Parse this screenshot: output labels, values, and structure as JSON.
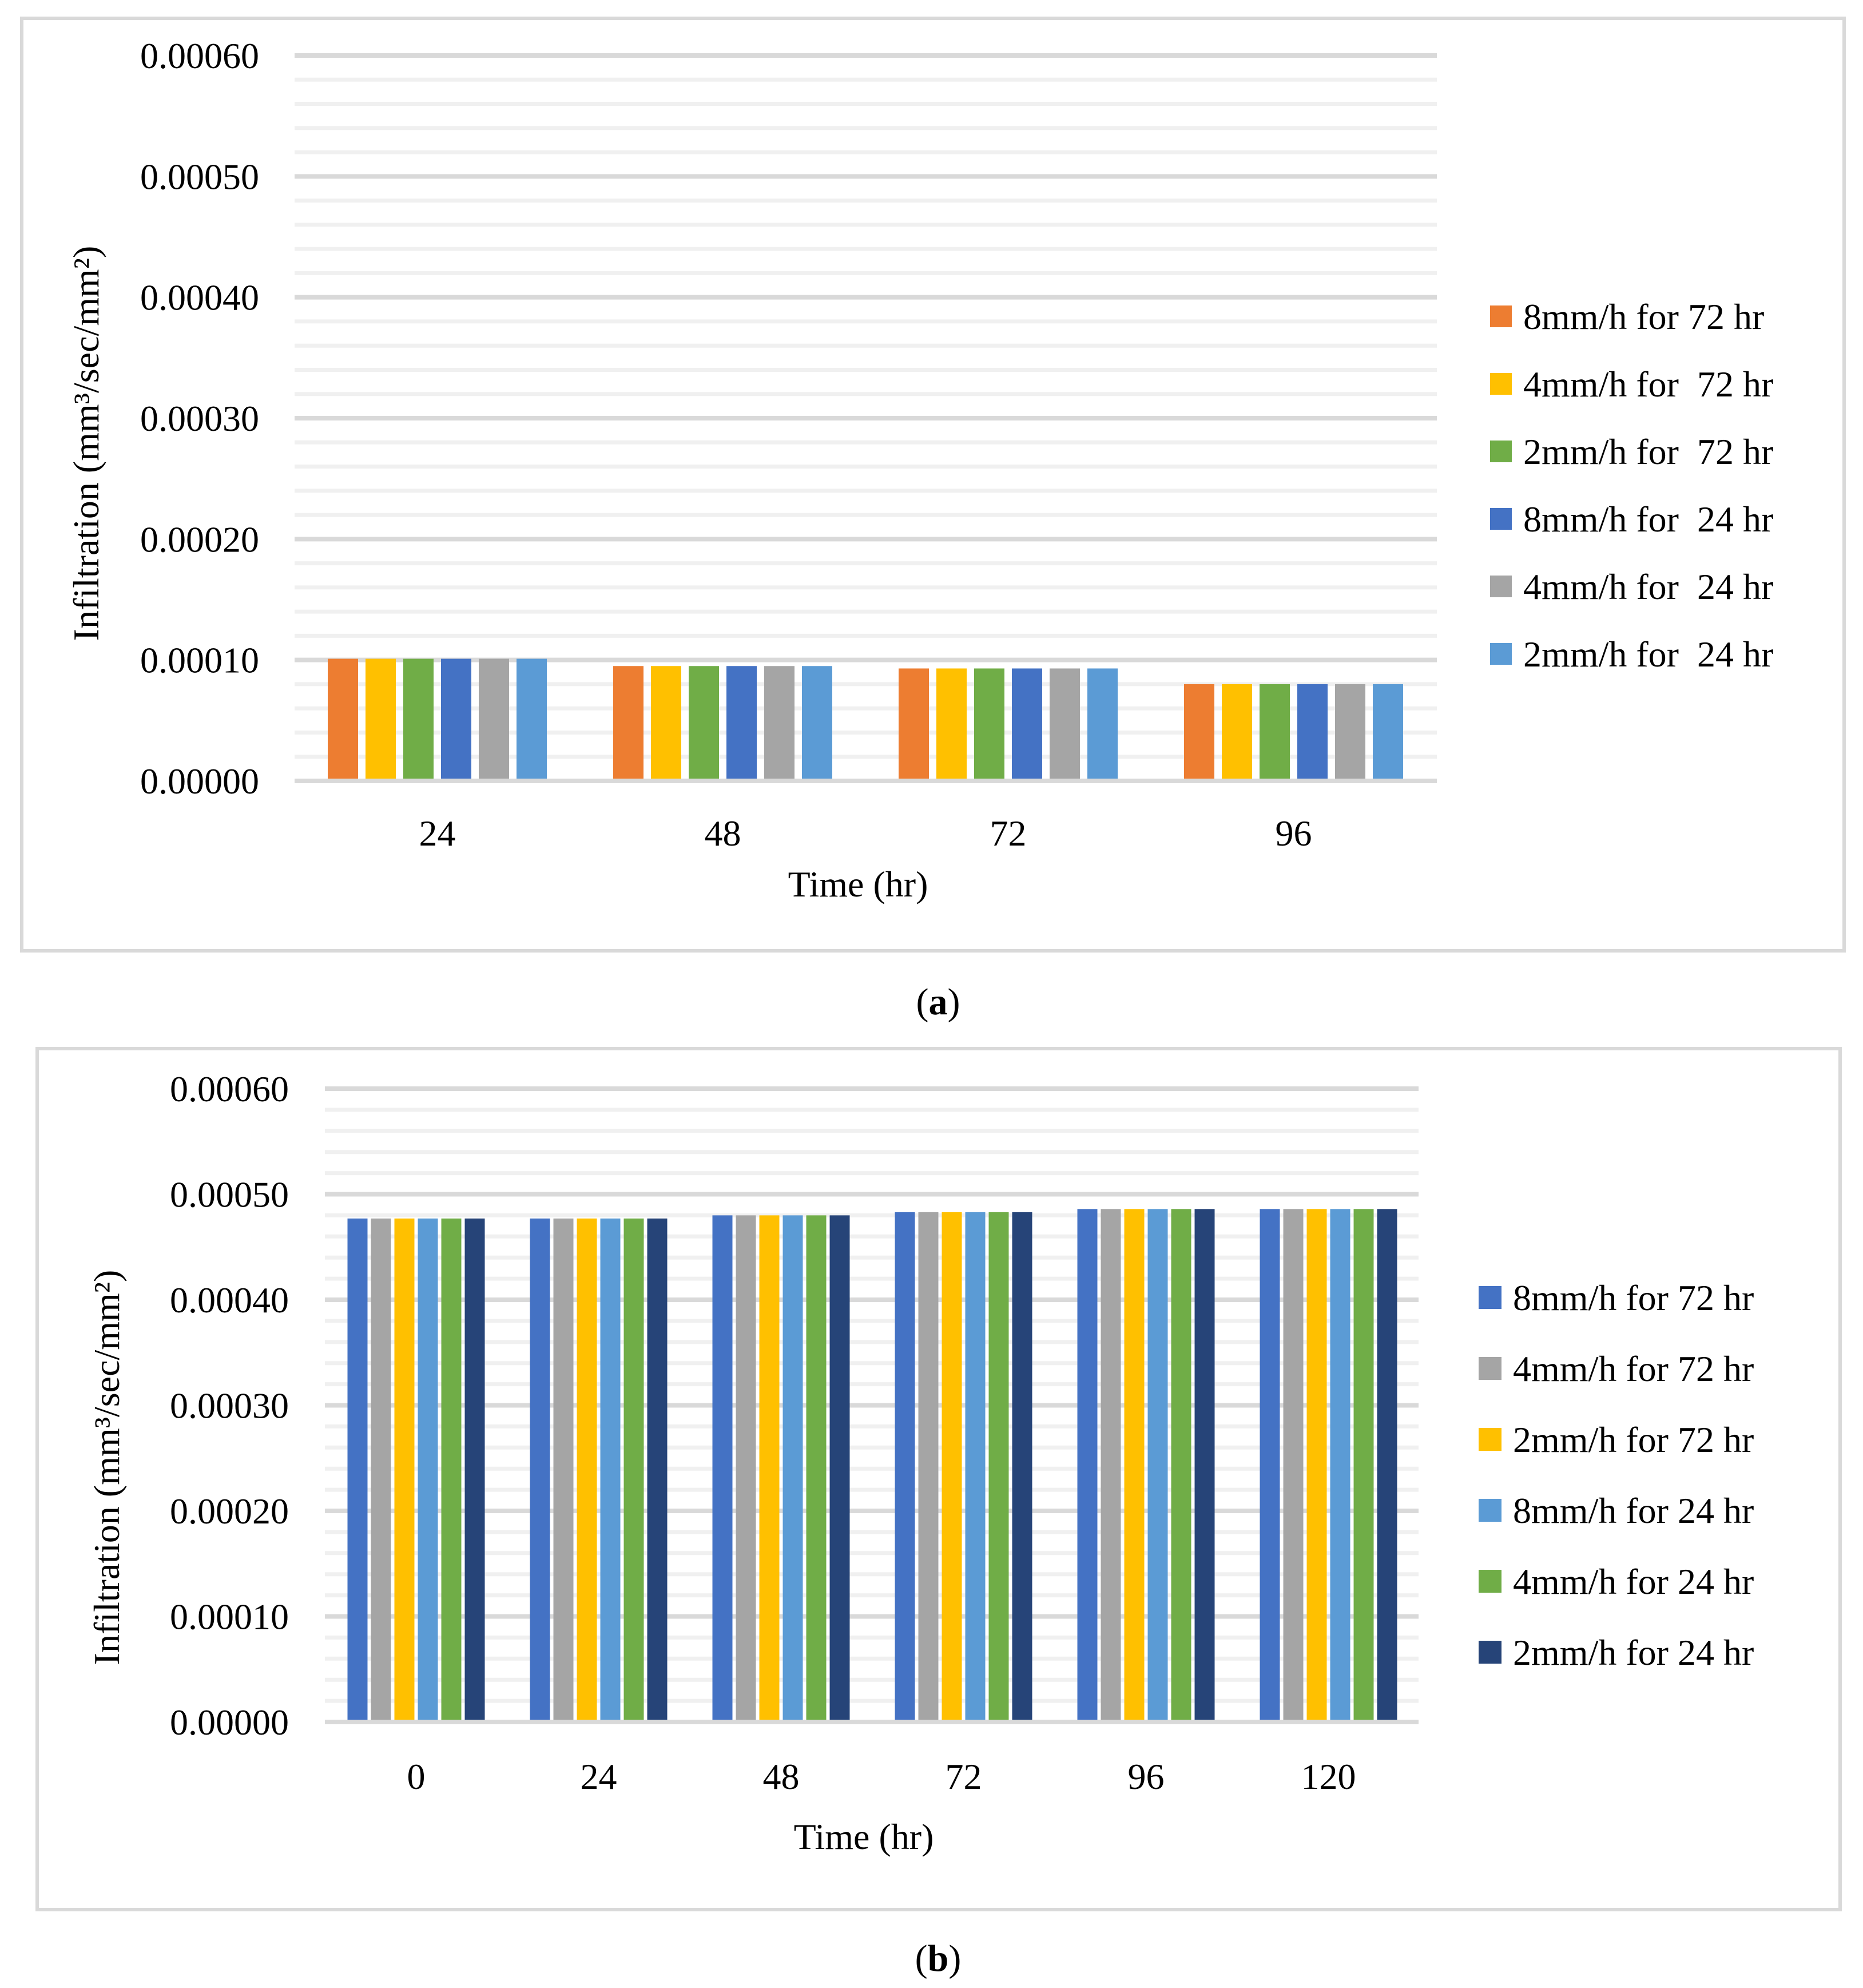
{
  "figure": {
    "caption_a": "a",
    "caption_b": "b"
  },
  "chart_data": [
    {
      "type": "bar",
      "panel": "a",
      "title": "",
      "xlabel": "Time (hr)",
      "ylabel": "Infiltration (mm³/sec/mm²)",
      "ylim": [
        0,
        0.0006
      ],
      "ytick_labels": [
        "0.00000",
        "0.00010",
        "0.00020",
        "0.00030",
        "0.00040",
        "0.00050",
        "0.00060"
      ],
      "categories": [
        "24",
        "48",
        "72",
        "96"
      ],
      "legend_position": "right",
      "series": [
        {
          "name": "8mm/h for 72 hr",
          "color": "#ED7D31",
          "values": [
            0.000101,
            9.5e-05,
            9.3e-05,
            8e-05
          ]
        },
        {
          "name": "4mm/h for  72 hr",
          "color": "#FFC000",
          "values": [
            0.000101,
            9.5e-05,
            9.3e-05,
            8e-05
          ]
        },
        {
          "name": "2mm/h for  72 hr",
          "color": "#70AD47",
          "values": [
            0.000101,
            9.5e-05,
            9.3e-05,
            8e-05
          ]
        },
        {
          "name": "8mm/h for  24 hr",
          "color": "#4472C4",
          "values": [
            0.000101,
            9.5e-05,
            9.3e-05,
            8e-05
          ]
        },
        {
          "name": "4mm/h for  24 hr",
          "color": "#A5A5A5",
          "values": [
            0.000101,
            9.5e-05,
            9.3e-05,
            8e-05
          ]
        },
        {
          "name": "2mm/h for  24 hr",
          "color": "#5B9BD5",
          "values": [
            0.000101,
            9.5e-05,
            9.3e-05,
            8e-05
          ]
        }
      ]
    },
    {
      "type": "bar",
      "panel": "b",
      "title": "",
      "xlabel": "Time (hr)",
      "ylabel": "Infiltration (mm³/sec/mm²)",
      "ylim": [
        0,
        0.0006
      ],
      "ytick_labels": [
        "0.00000",
        "0.00010",
        "0.00020",
        "0.00030",
        "0.00040",
        "0.00050",
        "0.00060"
      ],
      "categories": [
        "0",
        "24",
        "48",
        "72",
        "96",
        "120"
      ],
      "legend_position": "right",
      "series": [
        {
          "name": "8mm/h for 72 hr",
          "color": "#4472C4",
          "values": [
            0.000477,
            0.000477,
            0.00048,
            0.000483,
            0.000486,
            0.000486
          ]
        },
        {
          "name": "4mm/h for 72 hr",
          "color": "#A5A5A5",
          "values": [
            0.000477,
            0.000477,
            0.00048,
            0.000483,
            0.000486,
            0.000486
          ]
        },
        {
          "name": "2mm/h for 72 hr",
          "color": "#FFC000",
          "values": [
            0.000477,
            0.000477,
            0.00048,
            0.000483,
            0.000486,
            0.000486
          ]
        },
        {
          "name": "8mm/h for 24 hr",
          "color": "#5B9BD5",
          "values": [
            0.000477,
            0.000477,
            0.00048,
            0.000483,
            0.000486,
            0.000486
          ]
        },
        {
          "name": "4mm/h for 24 hr",
          "color": "#70AD47",
          "values": [
            0.000477,
            0.000477,
            0.00048,
            0.000483,
            0.000486,
            0.000486
          ]
        },
        {
          "name": "2mm/h for 24 hr",
          "color": "#264478",
          "values": [
            0.000477,
            0.000477,
            0.00048,
            0.000483,
            0.000486,
            0.000486
          ]
        }
      ]
    }
  ]
}
